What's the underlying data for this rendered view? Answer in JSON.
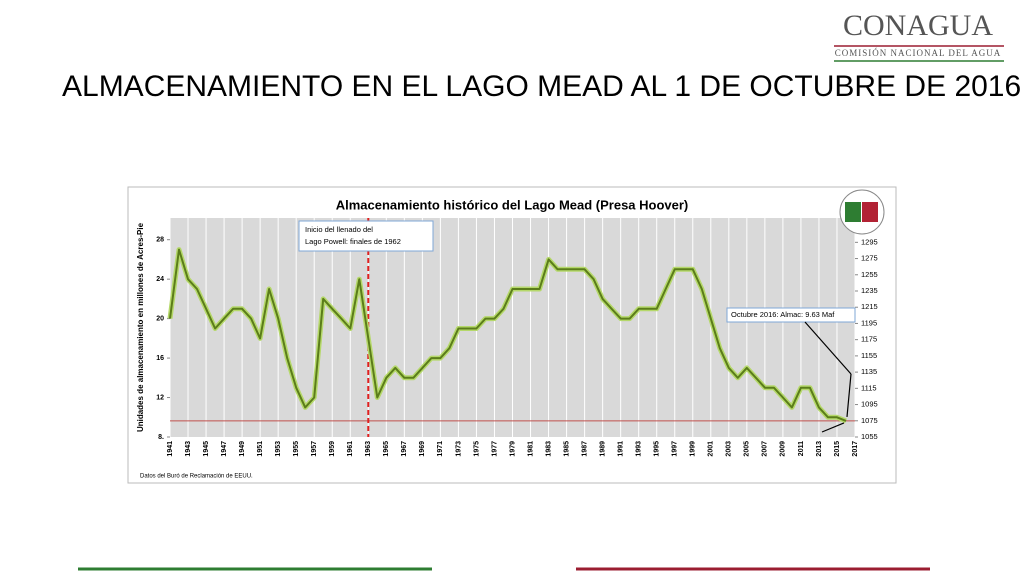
{
  "header": {
    "logo": "CONAGUA",
    "logo_subtitle": "COMISIÓN NACIONAL DEL AGUA",
    "title": "ALMACENAMIENTO EN EL LAGO MEAD  AL 1 DE OCTUBRE DE 2016"
  },
  "chart_data": {
    "type": "line",
    "title": "Almacenamiento histórico del Lago Mead (Presa Hoover)",
    "y_label": "Unidades de almacenamiento en millones de Acres-Pie",
    "source": "Datos del Buró de Reclamación de EEUU.",
    "annotations": [
      {
        "lines": [
          "Inicio del llenado del",
          "Lago Powell: finales de 1962"
        ],
        "x": 1963
      },
      {
        "lines": [
          "Octubre 2016: Almac: 9.63 Maf"
        ],
        "x": 2016,
        "y": 9.63
      }
    ],
    "color": "#5b7d1a",
    "vline_color": "#e02020",
    "hline_color": "#c0504d",
    "x": [
      1941,
      1942,
      1943,
      1944,
      1945,
      1946,
      1947,
      1948,
      1949,
      1950,
      1951,
      1952,
      1953,
      1954,
      1955,
      1956,
      1957,
      1958,
      1959,
      1960,
      1961,
      1962,
      1963,
      1964,
      1965,
      1966,
      1967,
      1968,
      1969,
      1970,
      1971,
      1972,
      1973,
      1974,
      1975,
      1976,
      1977,
      1978,
      1979,
      1980,
      1981,
      1982,
      1983,
      1984,
      1985,
      1986,
      1987,
      1988,
      1989,
      1990,
      1991,
      1992,
      1993,
      1994,
      1995,
      1996,
      1997,
      1998,
      1999,
      2000,
      2001,
      2002,
      2003,
      2004,
      2005,
      2006,
      2007,
      2008,
      2009,
      2010,
      2011,
      2012,
      2013,
      2014,
      2015,
      2016
    ],
    "values": [
      20,
      27,
      24,
      23,
      21,
      19,
      20,
      21,
      21,
      20,
      18,
      23,
      20,
      16,
      13,
      11,
      12,
      22,
      21,
      20,
      19,
      24,
      18,
      12,
      14,
      15,
      14,
      14,
      15,
      16,
      16,
      17,
      19,
      19,
      19,
      20,
      20,
      21,
      23,
      23,
      23,
      23,
      26,
      25,
      25,
      25,
      25,
      24,
      22,
      21,
      20,
      20,
      21,
      21,
      21,
      23,
      25,
      25,
      25,
      23,
      20,
      17,
      15,
      14,
      15,
      14,
      13,
      13,
      12,
      11,
      13,
      13,
      11,
      10,
      10,
      9.63
    ],
    "xlim": [
      1941,
      2017
    ],
    "xticks": [
      1941,
      1943,
      1945,
      1947,
      1949,
      1951,
      1953,
      1955,
      1957,
      1959,
      1961,
      1963,
      1965,
      1967,
      1969,
      1971,
      1973,
      1975,
      1977,
      1979,
      1981,
      1983,
      1985,
      1987,
      1989,
      1991,
      1993,
      1995,
      1997,
      1999,
      2001,
      2003,
      2005,
      2007,
      2009,
      2011,
      2013,
      2015,
      2017
    ],
    "ylim": [
      8,
      30.2
    ],
    "yticks": [
      {
        "value": 8,
        "label": "8."
      },
      12,
      16,
      20,
      24,
      28
    ],
    "y2lim": [
      1055,
      1325
    ],
    "y2ticks": [
      1055,
      1075,
      1095,
      1115,
      1135,
      1155,
      1175,
      1195,
      1215,
      1235,
      1255,
      1275,
      1295
    ],
    "grid": true
  }
}
